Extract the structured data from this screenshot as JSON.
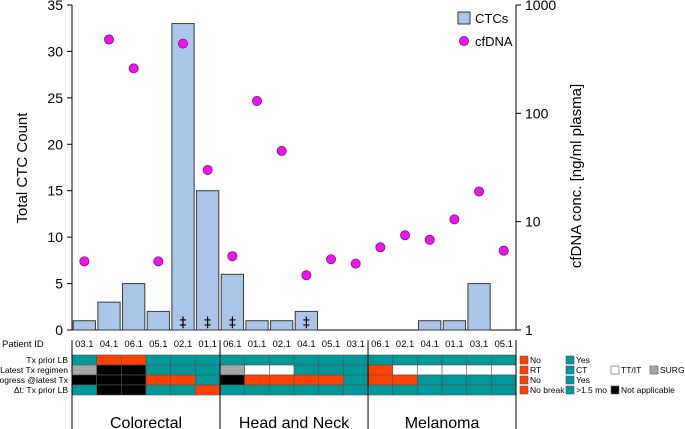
{
  "chart_data": {
    "type": "bar",
    "ylabel": "Total CTC Count",
    "y2label": "cfDNA conc. [ng/ml plasma]",
    "ylim": [
      0,
      35
    ],
    "yticks": [
      "0",
      "5",
      "10",
      "15",
      "20",
      "25",
      "30",
      "35"
    ],
    "y2lim": [
      1,
      1000
    ],
    "y2ticks": [
      "1",
      "10",
      "100",
      "1000"
    ],
    "legend": {
      "position": "top-right",
      "bar_label": "CTCs",
      "dot_label": "cfDNA"
    },
    "colors": {
      "bar": "#a9c6e9",
      "bar_edge": "#3a3a3a",
      "dot": "#ee12ee",
      "dot_edge": "#7a1a7a",
      "red": "#ff4000",
      "teal": "#009999",
      "black": "#000000",
      "grey": "#a6a6a6",
      "white": "#ffffff"
    },
    "patient_header": "Patient ID",
    "patients": [
      "03.1",
      "04.1",
      "06.1",
      "05.1",
      "02.1",
      "01.1",
      "06.1",
      "01.1",
      "02.1",
      "04.1",
      "05.1",
      "03.1",
      "06.1",
      "02.1",
      "04.1",
      "01.1",
      "03.1",
      "05.1"
    ],
    "series": [
      {
        "name": "CTCs",
        "values": [
          1,
          3,
          5,
          2,
          33,
          15,
          6,
          1,
          1,
          2,
          null,
          null,
          null,
          null,
          1,
          1,
          5,
          null
        ]
      },
      {
        "name": "cfDNA",
        "values": [
          4.3,
          480,
          260,
          4.3,
          440,
          30,
          4.8,
          130,
          45,
          3.2,
          4.5,
          4.1,
          5.8,
          7.5,
          6.8,
          10.5,
          19,
          5.4
        ]
      }
    ],
    "markers": [
      {
        "index": 4,
        "symbol": "‡"
      },
      {
        "index": 5,
        "symbol": "‡"
      },
      {
        "index": 6,
        "symbol": "‡"
      },
      {
        "index": 9,
        "symbol": "‡"
      }
    ],
    "groups": [
      {
        "label": "Colorectal",
        "start": 0,
        "end": 5
      },
      {
        "label": "Head and Neck",
        "start": 6,
        "end": 11
      },
      {
        "label": "Melanoma",
        "start": 12,
        "end": 17
      }
    ],
    "heatmap_rows": [
      {
        "label": "Tx prior LB",
        "cells": [
          "teal",
          "red",
          "red",
          "teal",
          "teal",
          "teal",
          "teal",
          "teal",
          "teal",
          "teal",
          "teal",
          "teal",
          "teal",
          "teal",
          "teal",
          "teal",
          "teal",
          "teal"
        ],
        "legend": [
          {
            "color": "red",
            "label": "No"
          },
          {
            "color": "teal",
            "label": "Yes"
          }
        ]
      },
      {
        "label": "Latest Tx regimen",
        "cells": [
          "grey",
          "black",
          "black",
          "teal",
          "teal",
          "teal",
          "grey",
          "white",
          "white",
          "teal",
          "teal",
          "teal",
          "red",
          "white",
          "white",
          "white",
          "white",
          "white"
        ],
        "legend": [
          {
            "color": "red",
            "label": "RT"
          },
          {
            "color": "teal",
            "label": "CT"
          },
          {
            "color": "white",
            "label": "TT/IT"
          },
          {
            "color": "grey",
            "label": "SURG."
          }
        ]
      },
      {
        "label": "Progress @latest Tx",
        "cells": [
          "black",
          "black",
          "black",
          "red",
          "red",
          "teal",
          "black",
          "red",
          "red",
          "red",
          "red",
          "teal",
          "red",
          "red",
          "teal",
          "teal",
          "teal",
          "teal"
        ],
        "legend": [
          {
            "color": "red",
            "label": "No"
          },
          {
            "color": "teal",
            "label": "Yes"
          }
        ]
      },
      {
        "label": "Δt: Tx prior LB",
        "cells": [
          "teal",
          "black",
          "black",
          "teal",
          "teal",
          "red",
          "teal",
          "teal",
          "teal",
          "teal",
          "teal",
          "teal",
          "teal",
          "teal",
          "teal",
          "teal",
          "teal",
          "teal"
        ],
        "legend": [
          {
            "color": "red",
            "label": "No break"
          },
          {
            "color": "teal",
            "label": ">1.5 mo"
          },
          {
            "color": "black",
            "label": "Not applicable"
          }
        ]
      }
    ]
  }
}
